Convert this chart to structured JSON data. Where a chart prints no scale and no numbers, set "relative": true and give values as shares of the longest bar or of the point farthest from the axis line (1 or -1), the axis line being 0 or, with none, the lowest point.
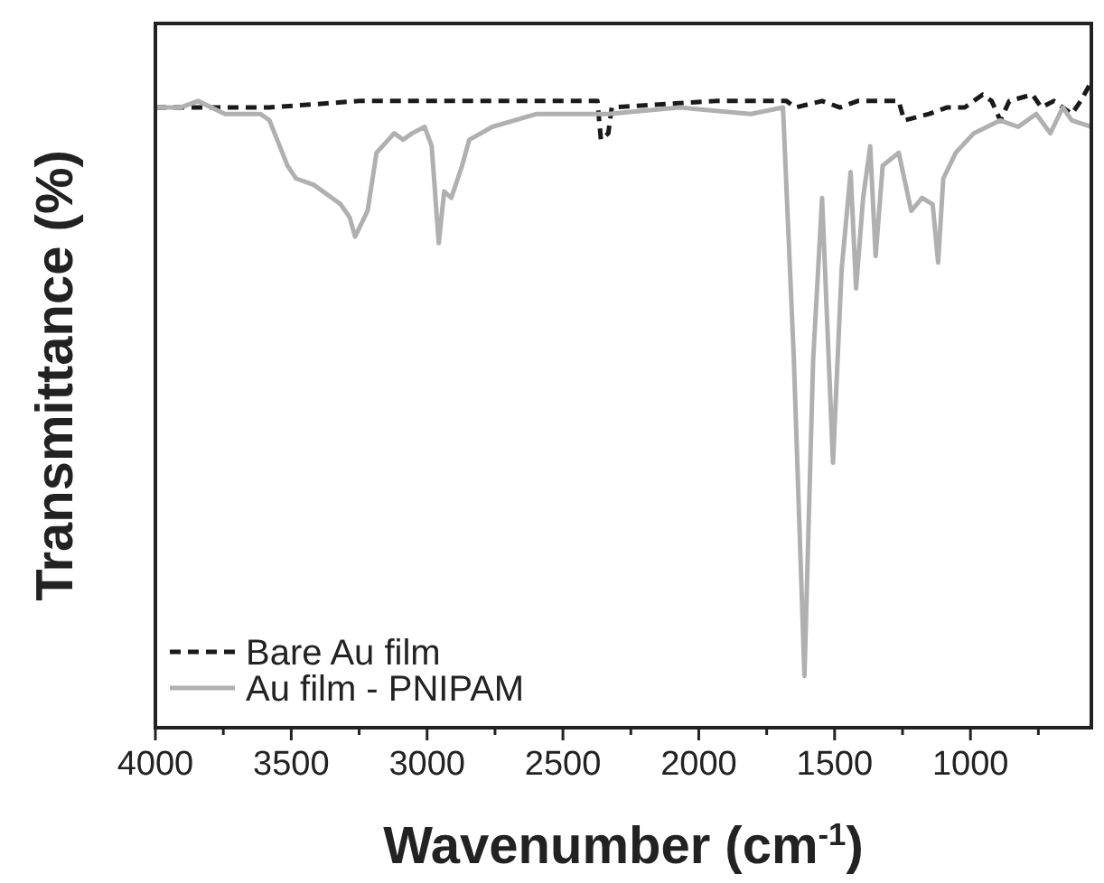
{
  "chart_data": {
    "type": "line",
    "relative": true,
    "xlabel": "Wavenumber (cm$^{-1}$)",
    "ylabel": "Transmittance (%)",
    "xlim": [
      4000,
      555
    ],
    "xticks": [
      4000,
      {
        "value": 3750,
        "label": null
      },
      3500,
      {
        "value": 3250,
        "label": null
      },
      3000,
      {
        "value": 2750,
        "label": null
      },
      2500,
      {
        "value": 2250,
        "label": null
      },
      2000,
      {
        "value": 1750,
        "label": null
      },
      1500,
      {
        "value": 1250,
        "label": null
      },
      1000,
      {
        "value": 750,
        "label": null
      }
    ],
    "legend": "bottom left",
    "grid": false,
    "series": [
      {
        "name": "Bare Au film",
        "color": "#1a1a1a",
        "line_style": "dashed",
        "x": [
          4000,
          3711,
          3580,
          3252,
          2596,
          2373,
          2360,
          2333,
          2320,
          1939,
          1710,
          1677,
          1644,
          1546,
          1480,
          1415,
          1283,
          1264,
          1244,
          1152,
          1087,
          1021,
          955,
          922,
          890,
          857,
          772,
          739,
          693,
          627,
          594,
          555
        ],
        "values": [
          0.96,
          0.96,
          0.96,
          0.97,
          0.97,
          0.97,
          0.91,
          0.92,
          0.96,
          0.97,
          0.97,
          0.97,
          0.96,
          0.97,
          0.96,
          0.97,
          0.97,
          0.97,
          0.94,
          0.95,
          0.96,
          0.96,
          0.98,
          0.97,
          0.94,
          0.97,
          0.98,
          0.96,
          0.97,
          0.95,
          0.97,
          1
        ]
      },
      {
        "name": "Au film - PNIPAM",
        "color": "#b0b0b0",
        "line_style": "solid",
        "x": [
          4000,
          3908,
          3843,
          3744,
          3613,
          3580,
          3514,
          3482,
          3416,
          3350,
          3318,
          3285,
          3265,
          3219,
          3186,
          3121,
          3088,
          3055,
          3009,
          2983,
          2957,
          2937,
          2911,
          2871,
          2845,
          2760,
          2596,
          2333,
          2071,
          1808,
          1690,
          1650,
          1611,
          1579,
          1546,
          1506,
          1474,
          1441,
          1421,
          1395,
          1369,
          1349,
          1323,
          1264,
          1218,
          1178,
          1139,
          1119,
          1100,
          1054,
          988,
          890,
          824,
          758,
          706,
          660,
          627,
          555
        ],
        "values": [
          0.96,
          0.96,
          0.97,
          0.95,
          0.95,
          0.94,
          0.87,
          0.85,
          0.84,
          0.82,
          0.81,
          0.79,
          0.76,
          0.8,
          0.89,
          0.92,
          0.91,
          0.92,
          0.93,
          0.9,
          0.75,
          0.83,
          0.82,
          0.87,
          0.91,
          0.93,
          0.95,
          0.95,
          0.96,
          0.95,
          0.96,
          0.57,
          0.08,
          0.57,
          0.82,
          0.41,
          0.71,
          0.86,
          0.68,
          0.82,
          0.9,
          0.73,
          0.87,
          0.89,
          0.8,
          0.82,
          0.81,
          0.72,
          0.85,
          0.89,
          0.92,
          0.94,
          0.93,
          0.95,
          0.92,
          0.96,
          0.94,
          0.93
        ]
      }
    ]
  }
}
